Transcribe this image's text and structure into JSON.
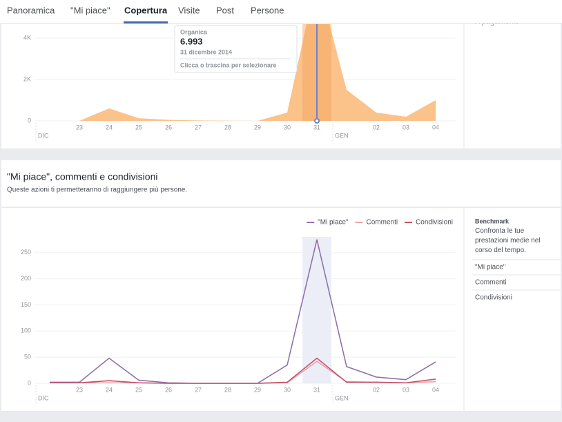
{
  "nav": {
    "tabs": [
      "Panoramica",
      "\"Mi piace\"",
      "Copertura",
      "Visite",
      "Post",
      "Persone"
    ],
    "active": 2
  },
  "sidebar_top": "A pagamento",
  "tooltip": {
    "series": "Organica",
    "value": "6.993",
    "date": "31 dicembre 2014",
    "hint": "Clicca o trascina per selezionare"
  },
  "section": {
    "title": "\"Mi piace\", commenti e condivisioni",
    "subtitle": "Queste azioni ti permetteranno di raggiungere più persone."
  },
  "benchmark": {
    "title": "Benchmark",
    "text": "Confronta le tue prestazioni medie nel corso del tempo.",
    "items": [
      "\"Mi piace\"",
      "Commenti",
      "Condivisioni"
    ]
  },
  "chart_data": [
    {
      "type": "area",
      "categories": [
        null,
        "23",
        "24",
        "25",
        "26",
        "27",
        "28",
        "29",
        "30",
        "31",
        null,
        "02",
        "03",
        "04"
      ],
      "months": [
        "DIC",
        null,
        null,
        null,
        null,
        null,
        null,
        null,
        null,
        null,
        "GEN",
        null,
        null,
        null
      ],
      "series": [
        {
          "name": "Organica",
          "color": "#fbc28a",
          "values": [
            0,
            0,
            600,
            130,
            50,
            20,
            10,
            0,
            400,
            6993,
            1500,
            400,
            200,
            1000
          ]
        }
      ],
      "highlight": 9,
      "ylim": [
        0,
        4667
      ],
      "yticks": [
        0,
        {
          "value": 2000,
          "label": "2K"
        },
        {
          "value": 4000,
          "label": "4K"
        }
      ],
      "grid": true
    },
    {
      "type": "line",
      "categories": [
        null,
        "23",
        "24",
        "25",
        "26",
        "27",
        "28",
        "29",
        "30",
        "31",
        null,
        "02",
        "03",
        "04"
      ],
      "months": [
        "DIC",
        null,
        null,
        null,
        null,
        null,
        null,
        null,
        null,
        null,
        "GEN",
        null,
        null,
        null
      ],
      "series": [
        {
          "name": "\"Mi piace\"",
          "color": "#8e72ad",
          "values": [
            2,
            2,
            48,
            6,
            1,
            0,
            0,
            0,
            35,
            275,
            32,
            12,
            7,
            41
          ]
        },
        {
          "name": "Commenti",
          "color": "#e9a3ab",
          "values": [
            1,
            1,
            1,
            1,
            0,
            0,
            0,
            0,
            1,
            42,
            3,
            2,
            1,
            3
          ]
        },
        {
          "name": "Condivisioni",
          "color": "#c4506b",
          "values": [
            1,
            1,
            5,
            1,
            0,
            0,
            0,
            0,
            2,
            48,
            2,
            2,
            1,
            8
          ]
        }
      ],
      "highlight": 9,
      "ylim": [
        0,
        280
      ],
      "yticks": [
        0,
        50,
        100,
        150,
        200,
        250
      ],
      "grid": true,
      "legend": "top-right"
    }
  ]
}
